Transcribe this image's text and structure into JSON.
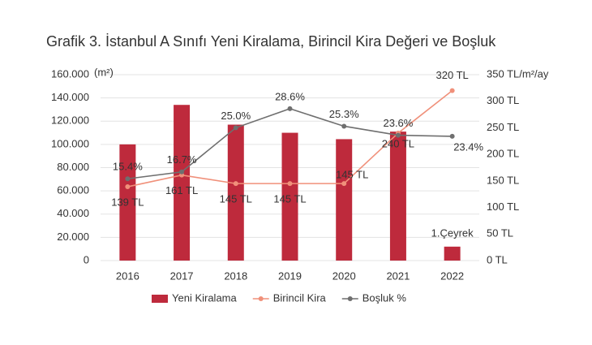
{
  "chart_data": {
    "type": "bar_line",
    "title": "Grafik 3. İstanbul A Sınıfı Yeni Kiralama, Birincil Kira Değeri ve Boşluk",
    "y_unit": "(m²)",
    "y2_unit": "/m²/ay",
    "categories": [
      "2016",
      "2017",
      "2018",
      "2019",
      "2020",
      "2021",
      "2022"
    ],
    "series": [
      {
        "name": "Yeni Kiralama",
        "type": "bar",
        "color": "#be2a3c",
        "axis": "y",
        "values": [
          100000,
          134000,
          117000,
          110000,
          104500,
          111000,
          12000
        ]
      },
      {
        "name": "Birincil Kira",
        "type": "line",
        "color": "#f0907a",
        "axis": "y2",
        "values": [
          139,
          161,
          145,
          145,
          145,
          240,
          320
        ],
        "value_labels": [
          "139 TL",
          "161 TL",
          "145 TL",
          "145 TL",
          "145 TL",
          "240 TL",
          "320 TL"
        ]
      },
      {
        "name": "Boşluk %",
        "type": "line",
        "color": "#6f6f6f",
        "axis": "y3",
        "values": [
          15.4,
          16.7,
          25.0,
          28.6,
          25.3,
          23.6,
          23.4
        ],
        "value_labels": [
          "15.4%",
          "16.7%",
          "25.0%",
          "28.6%",
          "25.3%",
          "23.6%",
          "23.4%"
        ]
      }
    ],
    "annotation": "1.Çeyrek",
    "ylim": [
      0,
      160000
    ],
    "yticks": [
      0,
      {
        "value": 20000,
        "label": "20.000"
      },
      {
        "value": 40000,
        "label": "40.000"
      },
      {
        "value": 60000,
        "label": "60.000"
      },
      {
        "value": 80000,
        "label": "80.000"
      },
      {
        "value": 100000,
        "label": "100.000"
      },
      {
        "value": 120000,
        "label": "120.000"
      },
      {
        "value": 140000,
        "label": "140.000"
      },
      {
        "value": 160000,
        "label": "160.000"
      }
    ],
    "y2lim": [
      0,
      350
    ],
    "y2ticks": [
      {
        "value": 0,
        "label": "0 TL"
      },
      {
        "value": 50,
        "label": "50 TL"
      },
      {
        "value": 100,
        "label": "100 TL"
      },
      {
        "value": 150,
        "label": "150 TL"
      },
      {
        "value": 200,
        "label": "200 TL"
      },
      {
        "value": 250,
        "label": "250 TL"
      },
      {
        "value": 300,
        "label": "300 TL"
      },
      {
        "value": 350,
        "label": "350 TL"
      }
    ],
    "y3lim": [
      0,
      35
    ],
    "grid": true,
    "legend": "bottom"
  }
}
